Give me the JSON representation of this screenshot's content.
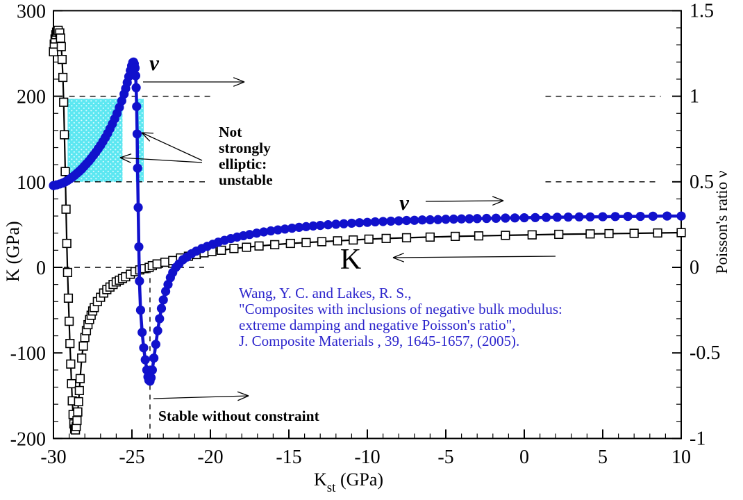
{
  "figure": {
    "background": "#ffffff",
    "curve_blue": "#1111cc",
    "citation_color": "#2d26cc",
    "region_cyan": "#5ce7f1",
    "region_dot": "#d8fbff"
  },
  "labels": {
    "nu": "ν",
    "k": "K",
    "not_elliptic_lines": [
      "Not",
      "strongly",
      "elliptic:",
      "unstable"
    ],
    "stable": "Stable without constraint",
    "citation_lines": [
      "Wang, Y. C. and Lakes, R. S.,",
      "\"Composites with inclusions of negative bulk modulus:",
      "extreme damping and negative Poisson's ratio\",",
      "J. Composite Materials , 39, 1645-1657, (2005)."
    ]
  },
  "chart_data": {
    "type": "line",
    "xlabel_main": "K",
    "xlabel_sub": "st",
    "xlabel_unit": " (GPa)",
    "ylabel_left": "K (GPa)",
    "ylabel_right": "Poisson's ratio ν",
    "xlim": [
      -30,
      10
    ],
    "ylim_left": [
      -200,
      300
    ],
    "ylim_right": [
      -1,
      1.5
    ],
    "xticks": [
      -30,
      -25,
      -20,
      -15,
      -10,
      -5,
      0,
      5,
      10
    ],
    "yticks_left": [
      -200,
      -100,
      0,
      100,
      200,
      300
    ],
    "yticks_right": [
      -1,
      -0.5,
      0,
      0.5,
      1,
      1.5
    ],
    "x_minor_step": 1,
    "y_left_minor_step": 20,
    "y_right_minor_step": 0.1,
    "grid": false,
    "regions": [
      {
        "name": "not-strongly-elliptic-band",
        "x_span": [
          -29.1,
          -25.6
        ],
        "k_span": [
          100,
          197
        ]
      },
      {
        "name": "not-strongly-elliptic-sliver",
        "x_span": [
          -24.75,
          -24.25
        ],
        "k_span": [
          100,
          197
        ]
      }
    ],
    "guides": [
      {
        "orient": "h",
        "level": 200,
        "segments": [
          [
            -29.0,
            -19.9
          ],
          [
            1.35,
            8.7
          ]
        ]
      },
      {
        "orient": "h",
        "level": 100,
        "segments": [
          [
            -30,
            -20.2
          ],
          [
            1.35,
            8.6
          ]
        ]
      },
      {
        "orient": "h",
        "level": 0,
        "segments": [
          [
            -30,
            -20.4
          ]
        ]
      },
      {
        "orient": "v",
        "level": -23.85,
        "k_span": [
          -200,
          -2
        ]
      }
    ],
    "series": [
      {
        "name": "K",
        "axis": "left",
        "marker": "square-open",
        "color": "#000000",
        "points": [
          [
            -30,
            252
          ],
          [
            -29.95,
            261
          ],
          [
            -29.9,
            267
          ],
          [
            -29.85,
            272
          ],
          [
            -29.8,
            275
          ],
          [
            -29.75,
            277
          ],
          [
            -29.7,
            277
          ],
          [
            -29.6,
            274
          ],
          [
            -29.55,
            268
          ],
          [
            -29.5,
            258
          ],
          [
            -29.45,
            243
          ],
          [
            -29.4,
            222
          ],
          [
            -29.35,
            193
          ],
          [
            -29.3,
            155
          ],
          [
            -29.25,
            112
          ],
          [
            -29.2,
            68
          ],
          [
            -29.15,
            28
          ],
          [
            -29.1,
            -6
          ],
          [
            -29.05,
            -36
          ],
          [
            -29,
            -63
          ],
          [
            -28.95,
            -89
          ],
          [
            -28.9,
            -113
          ],
          [
            -28.85,
            -136
          ],
          [
            -28.8,
            -156
          ],
          [
            -28.75,
            -172
          ],
          [
            -28.7,
            -183
          ],
          [
            -28.65,
            -189
          ],
          [
            -28.6,
            -190
          ],
          [
            -28.55,
            -186
          ],
          [
            -28.5,
            -179
          ],
          [
            -28.45,
            -169
          ],
          [
            -28.4,
            -157
          ],
          [
            -28.35,
            -144
          ],
          [
            -28.3,
            -130
          ],
          [
            -28.2,
            -106
          ],
          [
            -28.1,
            -92
          ],
          [
            -28,
            -82
          ],
          [
            -27.9,
            -74
          ],
          [
            -27.8,
            -67
          ],
          [
            -27.7,
            -61
          ],
          [
            -27.6,
            -56
          ],
          [
            -27.5,
            -51
          ],
          [
            -27.4,
            -47
          ],
          [
            -27.2,
            -40
          ],
          [
            -27,
            -35
          ],
          [
            -26.8,
            -30
          ],
          [
            -26.6,
            -26
          ],
          [
            -26.4,
            -23
          ],
          [
            -26.2,
            -20
          ],
          [
            -26,
            -17
          ],
          [
            -25.8,
            -15
          ],
          [
            -25.6,
            -13
          ],
          [
            -25.4,
            -11
          ],
          [
            -25.1,
            -8
          ],
          [
            -24.8,
            -5
          ],
          [
            -24.5,
            -3
          ],
          [
            -24.2,
            -1.5
          ],
          [
            -23.9,
            0
          ],
          [
            -23.7,
            2
          ],
          [
            -23.4,
            4
          ],
          [
            -22.9,
            6
          ],
          [
            -22.4,
            8
          ],
          [
            -21.9,
            11
          ],
          [
            -21.4,
            13
          ],
          [
            -20.9,
            15
          ],
          [
            -20.4,
            17
          ],
          [
            -19.9,
            18.5
          ],
          [
            -19.3,
            20
          ],
          [
            -18.5,
            22
          ],
          [
            -17.7,
            23.5
          ],
          [
            -16.9,
            25
          ],
          [
            -15.9,
            26.5
          ],
          [
            -14.9,
            28
          ],
          [
            -13.9,
            29
          ],
          [
            -12.9,
            30
          ],
          [
            -11.9,
            31
          ],
          [
            -10.9,
            32
          ],
          [
            -9.9,
            33
          ],
          [
            -8.8,
            33.8
          ],
          [
            -7.5,
            34.6
          ],
          [
            -6,
            35.4
          ],
          [
            -4.4,
            36.2
          ],
          [
            -2.9,
            36.8
          ],
          [
            -1.2,
            37.4
          ],
          [
            0.5,
            38
          ],
          [
            2.2,
            38.6
          ],
          [
            4.2,
            39.1
          ],
          [
            5.4,
            39.4
          ],
          [
            7,
            39.8
          ],
          [
            8.5,
            40.2
          ],
          [
            10,
            40.6
          ]
        ]
      },
      {
        "name": "nu",
        "axis": "right",
        "marker": "circle-filled",
        "color": "#1111cc",
        "points": [
          [
            -30,
            0.478
          ],
          [
            -29.8,
            0.482
          ],
          [
            -29.6,
            0.487
          ],
          [
            -29.4,
            0.493
          ],
          [
            -29.25,
            0.5
          ],
          [
            -29.1,
            0.508
          ],
          [
            -28.95,
            0.517
          ],
          [
            -28.8,
            0.527
          ],
          [
            -28.65,
            0.538
          ],
          [
            -28.5,
            0.55
          ],
          [
            -28.35,
            0.562
          ],
          [
            -28.2,
            0.575
          ],
          [
            -28.05,
            0.59
          ],
          [
            -27.9,
            0.605
          ],
          [
            -27.75,
            0.62
          ],
          [
            -27.6,
            0.637
          ],
          [
            -27.45,
            0.655
          ],
          [
            -27.3,
            0.673
          ],
          [
            -27.15,
            0.693
          ],
          [
            -27,
            0.713
          ],
          [
            -26.85,
            0.735
          ],
          [
            -26.7,
            0.758
          ],
          [
            -26.55,
            0.783
          ],
          [
            -26.4,
            0.81
          ],
          [
            -26.25,
            0.838
          ],
          [
            -26.1,
            0.868
          ],
          [
            -25.95,
            0.9
          ],
          [
            -25.8,
            0.935
          ],
          [
            -25.65,
            0.973
          ],
          [
            -25.5,
            1.013
          ],
          [
            -25.4,
            1.045
          ],
          [
            -25.3,
            1.08
          ],
          [
            -25.2,
            1.115
          ],
          [
            -25.1,
            1.15
          ],
          [
            -25.02,
            1.178
          ],
          [
            -24.95,
            1.197
          ],
          [
            -24.9,
            1.2
          ],
          [
            -24.85,
            1.19
          ],
          [
            -24.8,
            1.165
          ],
          [
            -24.76,
            1.12
          ],
          [
            -24.73,
            1.05
          ],
          [
            -24.7,
            0.94
          ],
          [
            -24.67,
            0.78
          ],
          [
            -24.64,
            0.58
          ],
          [
            -24.6,
            0.35
          ],
          [
            -24.56,
            0.12
          ],
          [
            -24.52,
            -0.08
          ],
          [
            -24.45,
            -0.25
          ],
          [
            -24.35,
            -0.38
          ],
          [
            -24.25,
            -0.47
          ],
          [
            -24.15,
            -0.54
          ],
          [
            -24.05,
            -0.6
          ],
          [
            -23.98,
            -0.64
          ],
          [
            -23.92,
            -0.66
          ],
          [
            -23.85,
            -0.665
          ],
          [
            -23.78,
            -0.645
          ],
          [
            -23.7,
            -0.6
          ],
          [
            -23.6,
            -0.53
          ],
          [
            -23.48,
            -0.45
          ],
          [
            -23.36,
            -0.37
          ],
          [
            -23.24,
            -0.3
          ],
          [
            -23.12,
            -0.24
          ],
          [
            -23,
            -0.19
          ],
          [
            -22.85,
            -0.14
          ],
          [
            -22.7,
            -0.1
          ],
          [
            -22.55,
            -0.06
          ],
          [
            -22.4,
            -0.03
          ],
          [
            -22.2,
            0
          ],
          [
            -22,
            0.02
          ],
          [
            -21.75,
            0.045
          ],
          [
            -21.5,
            0.06
          ],
          [
            -21.2,
            0.08
          ],
          [
            -20.9,
            0.095
          ],
          [
            -20.55,
            0.11
          ],
          [
            -20.2,
            0.123
          ],
          [
            -19.85,
            0.135
          ],
          [
            -19.5,
            0.147
          ],
          [
            -19.1,
            0.158
          ],
          [
            -18.7,
            0.168
          ],
          [
            -18.3,
            0.177
          ],
          [
            -17.9,
            0.185
          ],
          [
            -17.5,
            0.192
          ],
          [
            -17.05,
            0.2
          ],
          [
            -16.6,
            0.207
          ],
          [
            -16.15,
            0.213
          ],
          [
            -15.7,
            0.219
          ],
          [
            -15.25,
            0.224
          ],
          [
            -14.8,
            0.229
          ],
          [
            -14.35,
            0.234
          ],
          [
            -13.9,
            0.238
          ],
          [
            -13.45,
            0.242
          ],
          [
            -13,
            0.245
          ],
          [
            -12.5,
            0.249
          ],
          [
            -12,
            0.252
          ],
          [
            -11.5,
            0.255
          ],
          [
            -11,
            0.258
          ],
          [
            -10.5,
            0.261
          ],
          [
            -10,
            0.263
          ],
          [
            -9.5,
            0.266
          ],
          [
            -9,
            0.268
          ],
          [
            -8.5,
            0.27
          ],
          [
            -8,
            0.272
          ],
          [
            -7.5,
            0.274
          ],
          [
            -7,
            0.275
          ],
          [
            -6.5,
            0.277
          ],
          [
            -6,
            0.278
          ],
          [
            -5.5,
            0.279
          ],
          [
            -5,
            0.281
          ],
          [
            -4.5,
            0.282
          ],
          [
            -4,
            0.283
          ],
          [
            -3.5,
            0.284
          ],
          [
            -3,
            0.285
          ],
          [
            -2.4,
            0.286
          ],
          [
            -1.8,
            0.287
          ],
          [
            -1.2,
            0.288
          ],
          [
            -0.6,
            0.289
          ],
          [
            0,
            0.29
          ],
          [
            0.7,
            0.291
          ],
          [
            1.4,
            0.292
          ],
          [
            2.1,
            0.293
          ],
          [
            2.8,
            0.294
          ],
          [
            3.5,
            0.295
          ],
          [
            4.2,
            0.295
          ],
          [
            5,
            0.296
          ],
          [
            5.8,
            0.297
          ],
          [
            6.6,
            0.298
          ],
          [
            7.4,
            0.298
          ],
          [
            8.2,
            0.299
          ],
          [
            9.1,
            0.3
          ],
          [
            10,
            0.3
          ]
        ]
      }
    ]
  }
}
